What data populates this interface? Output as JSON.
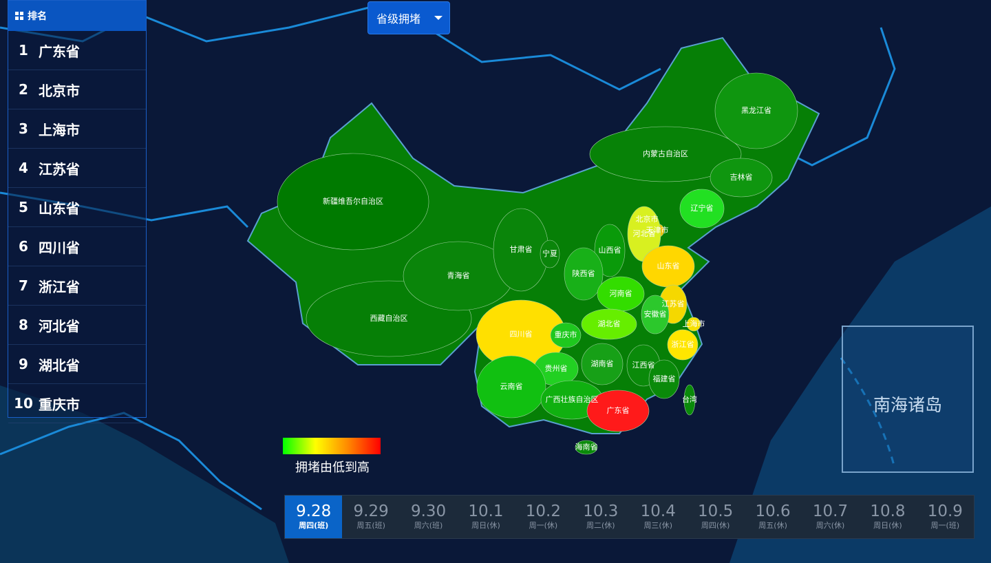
{
  "ranking": {
    "title": "排名",
    "rows": [
      {
        "rank": 1,
        "name": "广东省"
      },
      {
        "rank": 2,
        "name": "北京市"
      },
      {
        "rank": 3,
        "name": "上海市"
      },
      {
        "rank": 4,
        "name": "江苏省"
      },
      {
        "rank": 5,
        "name": "山东省"
      },
      {
        "rank": 6,
        "name": "四川省"
      },
      {
        "rank": 7,
        "name": "浙江省"
      },
      {
        "rank": 8,
        "name": "河北省"
      },
      {
        "rank": 9,
        "name": "湖北省"
      },
      {
        "rank": 10,
        "name": "重庆市"
      }
    ]
  },
  "dropdown": {
    "label": "省级拥堵"
  },
  "legend": {
    "label": "拥堵由低到高"
  },
  "inset": {
    "label": "南海诸岛"
  },
  "provinces": [
    {
      "name": "新疆维吾尔自治区",
      "color": "#007a00"
    },
    {
      "name": "西藏自治区",
      "color": "#067f06"
    },
    {
      "name": "青海省",
      "color": "#0a850a"
    },
    {
      "name": "甘肃省",
      "color": "#0a850a"
    },
    {
      "name": "内蒙古自治区",
      "color": "#078207"
    },
    {
      "name": "黑龙江省",
      "color": "#0f960f"
    },
    {
      "name": "吉林省",
      "color": "#0f960f"
    },
    {
      "name": "辽宁省",
      "color": "#22e022"
    },
    {
      "name": "北京市",
      "color": "#e84020"
    },
    {
      "name": "天津市",
      "color": "#f0c000"
    },
    {
      "name": "河北省",
      "color": "#d8f020"
    },
    {
      "name": "山西省",
      "color": "#0a9a0a"
    },
    {
      "name": "宁夏",
      "color": "#0a850a"
    },
    {
      "name": "陕西省",
      "color": "#18b018"
    },
    {
      "name": "山东省",
      "color": "#ffd700"
    },
    {
      "name": "河南省",
      "color": "#33dd00"
    },
    {
      "name": "江苏省",
      "color": "#f5d800"
    },
    {
      "name": "安徽省",
      "color": "#2cc82c"
    },
    {
      "name": "上海市",
      "color": "#f6e000"
    },
    {
      "name": "湖北省",
      "color": "#66ee00"
    },
    {
      "name": "四川省",
      "color": "#ffe000"
    },
    {
      "name": "重庆市",
      "color": "#1ec81e"
    },
    {
      "name": "浙江省",
      "color": "#ffe600"
    },
    {
      "name": "贵州省",
      "color": "#22d022"
    },
    {
      "name": "湖南省",
      "color": "#17a017"
    },
    {
      "name": "江西省",
      "color": "#0a8a0a"
    },
    {
      "name": "福建省",
      "color": "#0a8a0a"
    },
    {
      "name": "云南省",
      "color": "#11c011"
    },
    {
      "name": "广西壮族自治区",
      "color": "#10b010"
    },
    {
      "name": "广东省",
      "color": "#ff1a1a"
    },
    {
      "name": "台湾",
      "color": "#0a8a0a"
    },
    {
      "name": "海南省",
      "color": "#0a8a0a"
    }
  ],
  "timeline": {
    "active": 0,
    "items": [
      {
        "date": "9.28",
        "day": "周四(班)"
      },
      {
        "date": "9.29",
        "day": "周五(班)"
      },
      {
        "date": "9.30",
        "day": "周六(班)"
      },
      {
        "date": "10.1",
        "day": "周日(休)"
      },
      {
        "date": "10.2",
        "day": "周一(休)"
      },
      {
        "date": "10.3",
        "day": "周二(休)"
      },
      {
        "date": "10.4",
        "day": "周三(休)"
      },
      {
        "date": "10.5",
        "day": "周四(休)"
      },
      {
        "date": "10.6",
        "day": "周五(休)"
      },
      {
        "date": "10.7",
        "day": "周六(休)"
      },
      {
        "date": "10.8",
        "day": "周日(休)"
      },
      {
        "date": "10.9",
        "day": "周一(班)"
      }
    ]
  }
}
